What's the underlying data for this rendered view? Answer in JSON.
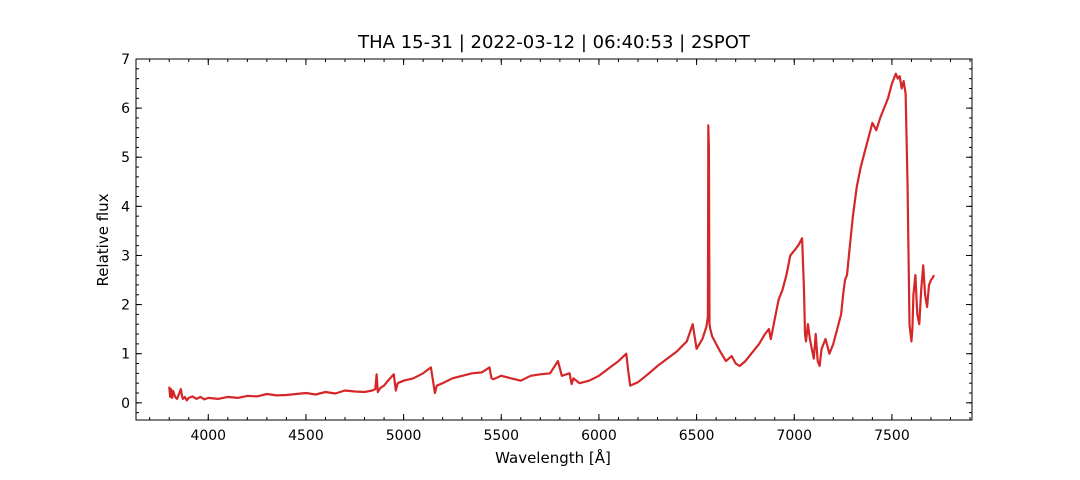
{
  "chart_data": {
    "type": "line",
    "title": "THA 15-31 | 2022-03-12 | 06:40:53 | 2SPOT",
    "xlabel": "Wavelength [Å]",
    "ylabel": "Relative flux",
    "xlim": [
      3630,
      7910
    ],
    "ylim": [
      -0.35,
      7.0
    ],
    "xticks": [
      4000,
      4500,
      5000,
      5500,
      6000,
      6500,
      7000,
      7500
    ],
    "xtick_labels": [
      "4000",
      "4500",
      "5000",
      "5500",
      "6000",
      "6500",
      "7000",
      "7500"
    ],
    "xminor_step": 100,
    "yticks": [
      0,
      1,
      2,
      3,
      4,
      5,
      6,
      7
    ],
    "ytick_labels": [
      "0",
      "1",
      "2",
      "3",
      "4",
      "5",
      "6",
      "7"
    ],
    "yminor_step": 0.2,
    "grid": false,
    "color": "#d62728",
    "series": [
      {
        "x": [
          3800,
          3805,
          3810,
          3815,
          3820,
          3830,
          3840,
          3850,
          3860,
          3865,
          3870,
          3880,
          3890,
          3900,
          3920,
          3940,
          3960,
          3980,
          4000,
          4050,
          4100,
          4150,
          4200,
          4250,
          4300,
          4350,
          4400,
          4450,
          4500,
          4550,
          4600,
          4650,
          4700,
          4750,
          4800,
          4840,
          4855,
          4862,
          4868,
          4880,
          4900,
          4920,
          4950,
          4960,
          4970,
          5000,
          5050,
          5100,
          5140,
          5160,
          5170,
          5200,
          5250,
          5300,
          5350,
          5400,
          5440,
          5450,
          5460,
          5500,
          5550,
          5600,
          5650,
          5700,
          5750,
          5790,
          5800,
          5810,
          5850,
          5860,
          5870,
          5900,
          5950,
          6000,
          6050,
          6100,
          6140,
          6150,
          6160,
          6200,
          6250,
          6300,
          6350,
          6400,
          6450,
          6480,
          6500,
          6530,
          6550,
          6558,
          6560,
          6563,
          6566,
          6570,
          6580,
          6600,
          6620,
          6650,
          6680,
          6700,
          6720,
          6750,
          6780,
          6800,
          6820,
          6850,
          6870,
          6880,
          6900,
          6920,
          6940,
          6960,
          6980,
          7000,
          7020,
          7040,
          7050,
          7055,
          7060,
          7070,
          7080,
          7090,
          7100,
          7110,
          7120,
          7130,
          7140,
          7160,
          7180,
          7200,
          7220,
          7240,
          7250,
          7260,
          7270,
          7280,
          7300,
          7320,
          7340,
          7360,
          7380,
          7400,
          7420,
          7440,
          7460,
          7480,
          7500,
          7520,
          7530,
          7540,
          7550,
          7560,
          7570,
          7580,
          7590,
          7600,
          7605,
          7610,
          7620,
          7630,
          7640,
          7650,
          7660,
          7670,
          7680,
          7690,
          7700,
          7710,
          7715
        ],
        "y": [
          0.33,
          0.12,
          0.28,
          0.1,
          0.24,
          0.12,
          0.08,
          0.18,
          0.28,
          0.15,
          0.08,
          0.12,
          0.05,
          0.1,
          0.13,
          0.08,
          0.12,
          0.07,
          0.1,
          0.08,
          0.12,
          0.1,
          0.14,
          0.13,
          0.18,
          0.15,
          0.16,
          0.18,
          0.2,
          0.17,
          0.22,
          0.19,
          0.25,
          0.23,
          0.22,
          0.25,
          0.28,
          0.58,
          0.22,
          0.3,
          0.35,
          0.45,
          0.58,
          0.25,
          0.4,
          0.45,
          0.5,
          0.6,
          0.72,
          0.2,
          0.35,
          0.4,
          0.5,
          0.55,
          0.6,
          0.62,
          0.72,
          0.5,
          0.48,
          0.55,
          0.5,
          0.45,
          0.55,
          0.58,
          0.6,
          0.85,
          0.7,
          0.55,
          0.6,
          0.38,
          0.5,
          0.4,
          0.45,
          0.55,
          0.7,
          0.85,
          1.0,
          0.65,
          0.35,
          0.42,
          0.58,
          0.75,
          0.9,
          1.05,
          1.25,
          1.6,
          1.1,
          1.3,
          1.55,
          1.75,
          5.65,
          5.2,
          1.6,
          1.5,
          1.35,
          1.2,
          1.05,
          0.85,
          0.95,
          0.8,
          0.75,
          0.85,
          1.0,
          1.1,
          1.2,
          1.4,
          1.5,
          1.3,
          1.7,
          2.1,
          2.3,
          2.6,
          3.0,
          3.1,
          3.2,
          3.35,
          2.3,
          1.4,
          1.25,
          1.6,
          1.3,
          1.1,
          0.9,
          1.4,
          0.85,
          0.75,
          1.1,
          1.3,
          1.0,
          1.2,
          1.5,
          1.8,
          2.2,
          2.5,
          2.6,
          3.0,
          3.8,
          4.4,
          4.8,
          5.1,
          5.4,
          5.7,
          5.55,
          5.8,
          6.0,
          6.2,
          6.5,
          6.7,
          6.6,
          6.65,
          6.4,
          6.55,
          6.3,
          4.5,
          1.6,
          1.25,
          1.5,
          2.2,
          2.6,
          1.8,
          1.6,
          2.3,
          2.8,
          2.2,
          1.95,
          2.4,
          2.5,
          2.55,
          2.6
        ]
      }
    ]
  }
}
